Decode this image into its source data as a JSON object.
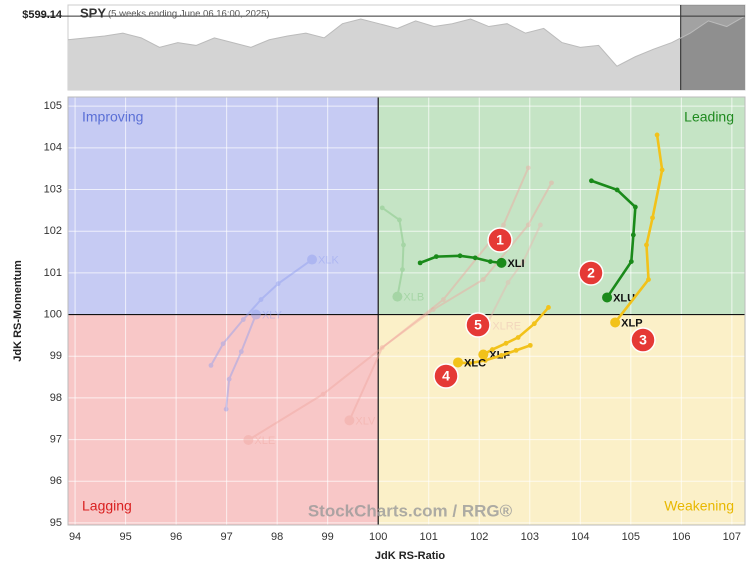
{
  "chart_data": [
    {
      "type": "area",
      "title": "SPY",
      "subtitle": "(5 weeks ending June 06 16:00, 2025)",
      "price_label": "$599.14",
      "price": 599.14,
      "ylim": [
        560,
        605
      ],
      "color": "#d4d4d4",
      "values": [
        586.6,
        587.6,
        588.6,
        590.1,
        587.6,
        582.6,
        585.1,
        583.6,
        587.6,
        585.1,
        582.6,
        586.6,
        588.6,
        590.1,
        587.6,
        595.1,
        597.6,
        595.1,
        592.6,
        596.6,
        593.6,
        595.1,
        597.6,
        593.6,
        595.1,
        590.1,
        592.6,
        585.1,
        582.6,
        583.6,
        572.6,
        577.6,
        581.6,
        585.1,
        590.1,
        596.6,
        593.6,
        599.14
      ]
    },
    {
      "type": "rrg",
      "xlabel": "JdK RS-Ratio",
      "ylabel": "JdK RS-Momentum",
      "xlim": [
        93.86,
        107.26
      ],
      "ylim": [
        94.95,
        105.22
      ],
      "xticks": [
        94,
        95,
        96,
        97,
        98,
        99,
        100,
        101,
        102,
        103,
        104,
        105,
        106,
        107
      ],
      "yticks": [
        95,
        96,
        97,
        98,
        99,
        100,
        101,
        102,
        103,
        104,
        105
      ],
      "center": [
        100,
        100
      ],
      "grid": true,
      "quadrants": [
        {
          "name": "Improving",
          "color": "#c6cbf3",
          "text_color": "#5a6fd6"
        },
        {
          "name": "Leading",
          "color": "#c5e4c5",
          "text_color": "#1f8a1f"
        },
        {
          "name": "Lagging",
          "color": "#f8c7c7",
          "text_color": "#d92020"
        },
        {
          "name": "Weakening",
          "color": "#fbf0c8",
          "text_color": "#e8b800"
        }
      ],
      "watermark": "StockCharts.com / RRG®",
      "annotations": [
        "1",
        "2",
        "3",
        "4",
        "5"
      ],
      "series": [
        {
          "name": "XLK",
          "color": "#8f9ef0",
          "faded": true,
          "x": [
            96.69,
            96.93,
            97.33,
            97.68,
            98.02,
            98.69
          ],
          "y": [
            98.78,
            99.3,
            99.88,
            100.36,
            100.74,
            101.32
          ]
        },
        {
          "name": "XLY",
          "color": "#8f9ef0",
          "faded": true,
          "x": [
            96.99,
            97.05,
            97.29,
            97.58
          ],
          "y": [
            97.73,
            98.45,
            99.11,
            100.0
          ]
        },
        {
          "name": "XLB",
          "color": "#7fc47f",
          "faded": true,
          "x": [
            100.08,
            100.42,
            100.5,
            100.48,
            100.38
          ],
          "y": [
            102.56,
            102.27,
            101.67,
            101.08,
            100.43
          ]
        },
        {
          "name": "XLRE",
          "color": "#e8b8b0",
          "faded": true,
          "x": [
            103.21,
            102.87,
            102.57,
            102.14
          ],
          "y": [
            102.15,
            101.27,
            100.77,
            99.74
          ]
        },
        {
          "name": "XLV",
          "color": "#f0a8a0",
          "faded": true,
          "x": [
            103.43,
            102.97,
            102.08,
            101.09,
            100.08,
            99.43
          ],
          "y": [
            103.16,
            102.15,
            100.84,
            100.12,
            99.21,
            97.46
          ]
        },
        {
          "name": "XLE",
          "color": "#f0a8a0",
          "faded": true,
          "x": [
            102.97,
            102.48,
            101.29,
            98.91,
            97.43
          ],
          "y": [
            103.52,
            102.15,
            100.36,
            98.09,
            96.99
          ]
        },
        {
          "name": "XLI",
          "color": "#1a8a1a",
          "faded": false,
          "x": [
            100.83,
            101.15,
            101.62,
            101.92,
            102.22,
            102.44
          ],
          "y": [
            101.24,
            101.39,
            101.41,
            101.36,
            101.27,
            101.24
          ]
        },
        {
          "name": "XLU",
          "color": "#1a8a1a",
          "faded": false,
          "x": [
            104.22,
            104.73,
            105.09,
            105.05,
            105.01,
            104.53
          ],
          "y": [
            103.21,
            102.99,
            102.58,
            101.91,
            101.27,
            100.41
          ]
        },
        {
          "name": "XLP",
          "color": "#f2c21a",
          "faded": false,
          "x": [
            105.52,
            105.62,
            105.43,
            105.31,
            105.35,
            104.69
          ],
          "y": [
            104.31,
            103.47,
            102.32,
            101.67,
            100.84,
            99.81
          ]
        },
        {
          "name": "XLF",
          "color": "#f2c21a",
          "faded": false,
          "x": [
            103.37,
            103.09,
            102.77,
            102.53,
            102.26,
            102.08
          ],
          "y": [
            100.17,
            99.78,
            99.45,
            99.31,
            99.16,
            99.04
          ]
        },
        {
          "name": "XLC",
          "color": "#f2c21a",
          "faded": false,
          "x": [
            103.01,
            102.73,
            102.44,
            102.12,
            101.8,
            101.58
          ],
          "y": [
            99.26,
            99.14,
            99.02,
            98.9,
            98.83,
            98.85
          ]
        }
      ]
    }
  ]
}
